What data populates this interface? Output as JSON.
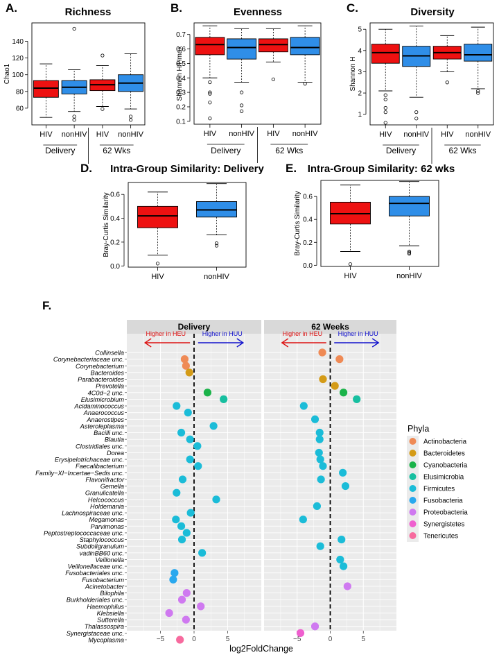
{
  "colors": {
    "hiv": "#ee1111",
    "nonhiv": "#2f8ee8",
    "panel_bg": "#ebebeb",
    "strip_bg": "#d9d9d9",
    "grid": "#ffffff",
    "arrow_heu": "#dd1111",
    "arrow_huu": "#1111cc"
  },
  "chart_data": [
    {
      "type": "box",
      "panel_label": "A.",
      "title": "Richness",
      "ylabel": "Chao1",
      "ylim": [
        40,
        162
      ],
      "yticks": [
        60,
        80,
        100,
        120,
        140
      ],
      "categories": [
        "HIV",
        "nonHIV",
        "HIV",
        "nonHIV"
      ],
      "groups": [
        "Delivery",
        "62 Wks"
      ],
      "boxes": [
        {
          "label": "HIV",
          "color": "hiv",
          "q1": 73,
          "median": 84,
          "q3": 93,
          "wlow": 49,
          "whigh": 113,
          "outliers": []
        },
        {
          "label": "nonHIV",
          "color": "nonhiv",
          "q1": 77,
          "median": 85,
          "q3": 93,
          "wlow": 56,
          "whigh": 106,
          "outliers": [
            155,
            50,
            46
          ]
        },
        {
          "label": "HIV",
          "color": "hiv",
          "q1": 81,
          "median": 88,
          "q3": 94,
          "wlow": 62,
          "whigh": 111,
          "outliers": [
            123,
            59
          ]
        },
        {
          "label": "nonHIV",
          "color": "nonhiv",
          "q1": 80,
          "median": 90,
          "q3": 100,
          "wlow": 59,
          "whigh": 125,
          "outliers": [
            50,
            46
          ]
        }
      ]
    },
    {
      "type": "box",
      "panel_label": "B.",
      "title": "Evenness",
      "ylabel": "Shannon H/Hmax",
      "ylim": [
        0.08,
        0.78
      ],
      "yticks": [
        0.1,
        0.2,
        0.3,
        0.4,
        0.5,
        0.6,
        0.7
      ],
      "categories": [
        "HIV",
        "nonHIV",
        "HIV",
        "nonHIV"
      ],
      "groups": [
        "Delivery",
        "62 Wks"
      ],
      "boxes": [
        {
          "label": "HIV",
          "color": "hiv",
          "q1": 0.56,
          "median": 0.63,
          "q3": 0.68,
          "wlow": 0.4,
          "whigh": 0.76,
          "outliers": [
            0.37,
            0.3,
            0.29,
            0.23,
            0.12
          ]
        },
        {
          "label": "nonHIV",
          "color": "nonhiv",
          "q1": 0.53,
          "median": 0.61,
          "q3": 0.67,
          "wlow": 0.37,
          "whigh": 0.74,
          "outliers": [
            0.3,
            0.21,
            0.17
          ]
        },
        {
          "label": "HIV",
          "color": "hiv",
          "q1": 0.58,
          "median": 0.63,
          "q3": 0.67,
          "wlow": 0.51,
          "whigh": 0.74,
          "outliers": [
            0.39
          ]
        },
        {
          "label": "nonHIV",
          "color": "nonhiv",
          "q1": 0.56,
          "median": 0.61,
          "q3": 0.68,
          "wlow": 0.37,
          "whigh": 0.76,
          "outliers": [
            0.36
          ]
        }
      ]
    },
    {
      "type": "box",
      "panel_label": "C.",
      "title": "Diversity",
      "ylabel": "Shannon H",
      "ylim": [
        0.5,
        5.3
      ],
      "yticks": [
        1,
        2,
        3,
        4,
        5
      ],
      "categories": [
        "HIV",
        "nonHIV",
        "HIV",
        "nonHIV"
      ],
      "groups": [
        "Delivery",
        "62 Wks"
      ],
      "boxes": [
        {
          "label": "HIV",
          "color": "hiv",
          "q1": 3.4,
          "median": 3.9,
          "q3": 4.3,
          "wlow": 2.1,
          "whigh": 5.0,
          "outliers": [
            1.9,
            1.7,
            1.3,
            1.1,
            0.6
          ]
        },
        {
          "label": "nonHIV",
          "color": "nonhiv",
          "q1": 3.25,
          "median": 3.75,
          "q3": 4.2,
          "wlow": 1.8,
          "whigh": 5.15,
          "outliers": [
            1.1,
            0.8
          ]
        },
        {
          "label": "HIV",
          "color": "hiv",
          "q1": 3.6,
          "median": 3.9,
          "q3": 4.2,
          "wlow": 3.0,
          "whigh": 4.7,
          "outliers": [
            2.5
          ]
        },
        {
          "label": "nonHIV",
          "color": "nonhiv",
          "q1": 3.5,
          "median": 3.8,
          "q3": 4.3,
          "wlow": 2.2,
          "whigh": 5.1,
          "outliers": [
            2.1,
            2.0
          ]
        }
      ]
    },
    {
      "type": "box",
      "panel_label": "D.",
      "title": "Intra-Group Similarity: Delivery",
      "ylabel": "Bray-Curtis Similarity",
      "ylim": [
        -0.01,
        0.7
      ],
      "yticks": [
        0.0,
        0.2,
        0.4,
        0.6
      ],
      "categories": [
        "HIV",
        "nonHIV"
      ],
      "boxes": [
        {
          "label": "HIV",
          "color": "hiv",
          "q1": 0.32,
          "median": 0.42,
          "q3": 0.5,
          "wlow": 0.09,
          "whigh": 0.62,
          "outliers": [
            0.02
          ]
        },
        {
          "label": "nonHIV",
          "color": "nonhiv",
          "q1": 0.41,
          "median": 0.47,
          "q3": 0.54,
          "wlow": 0.26,
          "whigh": 0.69,
          "outliers": [
            0.19,
            0.17
          ]
        }
      ]
    },
    {
      "type": "box",
      "panel_label": "E.",
      "title": "Intra-Group Similarity: 62 wks",
      "ylabel": "Bray-Curtis Similarity",
      "ylim": [
        -0.01,
        0.74
      ],
      "yticks": [
        0.0,
        0.2,
        0.4,
        0.6
      ],
      "categories": [
        "HIV",
        "nonHIV"
      ],
      "boxes": [
        {
          "label": "HIV",
          "color": "hiv",
          "q1": 0.36,
          "median": 0.45,
          "q3": 0.55,
          "wlow": 0.12,
          "whigh": 0.7,
          "outliers": [
            0.01
          ]
        },
        {
          "label": "nonHIV",
          "color": "nonhiv",
          "q1": 0.43,
          "median": 0.54,
          "q3": 0.6,
          "wlow": 0.17,
          "whigh": 0.73,
          "outliers": [
            0.12,
            0.11,
            0.1
          ]
        }
      ]
    },
    {
      "type": "scatter",
      "panel_label": "F.",
      "xlabel": "log2FoldChange",
      "xlim": [
        -10,
        10
      ],
      "xticks": [
        -5,
        0,
        5
      ],
      "facets": [
        "Delivery",
        "62 Weeks"
      ],
      "arrow_left_label": "Higher in HEU",
      "arrow_right_label": "Higher in HUU",
      "legend_title": "Phyla",
      "phyla": [
        {
          "name": "Actinobacteria",
          "color": "#ef8a55"
        },
        {
          "name": "Bacteroidetes",
          "color": "#d49b17"
        },
        {
          "name": "Cyanobacteria",
          "color": "#1bb34a"
        },
        {
          "name": "Elusimicrobia",
          "color": "#17bfa0"
        },
        {
          "name": "Firmicutes",
          "color": "#1bbcd8"
        },
        {
          "name": "Fusobacteria",
          "color": "#2aa8ee"
        },
        {
          "name": "Proteobacteria",
          "color": "#cf79f0"
        },
        {
          "name": "Synergistetes",
          "color": "#ef5fcf"
        },
        {
          "name": "Tenericutes",
          "color": "#f76a9e"
        }
      ],
      "taxa": [
        {
          "name": "Collinsella",
          "phylum": 0,
          "delivery": null,
          "wk62": -1.2
        },
        {
          "name": "Corynebacteriaceae unc.",
          "phylum": 0,
          "delivery": -1.4,
          "wk62": 1.4
        },
        {
          "name": "Corynebacterium",
          "phylum": 0,
          "delivery": -1.2,
          "wk62": null
        },
        {
          "name": "Bacteroides",
          "phylum": 1,
          "delivery": -0.7,
          "wk62": null
        },
        {
          "name": "Parabacteroides",
          "phylum": 1,
          "delivery": null,
          "wk62": -1.1
        },
        {
          "name": "Prevotella",
          "phylum": 1,
          "delivery": null,
          "wk62": 0.7
        },
        {
          "name": "4C0d−2 unc.",
          "phylum": 2,
          "delivery": 2.0,
          "wk62": 2.0
        },
        {
          "name": "Elusimicrobium",
          "phylum": 3,
          "delivery": 4.4,
          "wk62": 4.0
        },
        {
          "name": "Acidaminococcus",
          "phylum": 4,
          "delivery": -2.6,
          "wk62": -4.0
        },
        {
          "name": "Anaerococcus",
          "phylum": 4,
          "delivery": -0.9,
          "wk62": null
        },
        {
          "name": "Anaerostipes",
          "phylum": 4,
          "delivery": null,
          "wk62": -2.3
        },
        {
          "name": "Asteroleplasma",
          "phylum": 4,
          "delivery": 2.9,
          "wk62": null
        },
        {
          "name": "Bacilli unc.",
          "phylum": 4,
          "delivery": -1.9,
          "wk62": -1.6
        },
        {
          "name": "Blautia",
          "phylum": 4,
          "delivery": -0.6,
          "wk62": -1.6
        },
        {
          "name": "Clostridiales unc.",
          "phylum": 4,
          "delivery": 0.5,
          "wk62": null
        },
        {
          "name": "Dorea",
          "phylum": 4,
          "delivery": null,
          "wk62": -1.7
        },
        {
          "name": "Erysipelotrichaceae unc.",
          "phylum": 4,
          "delivery": -0.6,
          "wk62": -1.5
        },
        {
          "name": "Faecalibacterium",
          "phylum": 4,
          "delivery": 0.6,
          "wk62": -1.1
        },
        {
          "name": "Family−XI−Incertae−Sedis unc.",
          "phylum": 4,
          "delivery": null,
          "wk62": 1.9
        },
        {
          "name": "Flavonifractor",
          "phylum": 4,
          "delivery": -1.7,
          "wk62": -1.4
        },
        {
          "name": "Gemella",
          "phylum": 4,
          "delivery": null,
          "wk62": 2.3
        },
        {
          "name": "Granulicatella",
          "phylum": 4,
          "delivery": -2.6,
          "wk62": null
        },
        {
          "name": "Helcococcus",
          "phylum": 4,
          "delivery": 3.3,
          "wk62": null
        },
        {
          "name": "Holdemania",
          "phylum": 4,
          "delivery": null,
          "wk62": -2.0
        },
        {
          "name": "Lachnospiraceae unc.",
          "phylum": 4,
          "delivery": -0.5,
          "wk62": null
        },
        {
          "name": "Megamonas",
          "phylum": 4,
          "delivery": -2.7,
          "wk62": -4.1
        },
        {
          "name": "Parvimonas",
          "phylum": 4,
          "delivery": -1.9,
          "wk62": null
        },
        {
          "name": "Peptostreptococcaceae unc.",
          "phylum": 4,
          "delivery": -1.1,
          "wk62": null
        },
        {
          "name": "Staphylococcus",
          "phylum": 4,
          "delivery": -1.8,
          "wk62": 1.7
        },
        {
          "name": "Subdoligranulum",
          "phylum": 4,
          "delivery": null,
          "wk62": -1.5
        },
        {
          "name": "vadinBB60 unc.",
          "phylum": 4,
          "delivery": 1.2,
          "wk62": null
        },
        {
          "name": "Veillonella",
          "phylum": 4,
          "delivery": null,
          "wk62": 1.5
        },
        {
          "name": "Veillonellaceae unc.",
          "phylum": 4,
          "delivery": null,
          "wk62": 2.0
        },
        {
          "name": "Fusobacteriales unc.",
          "phylum": 5,
          "delivery": -2.9,
          "wk62": null
        },
        {
          "name": "Fusobacterium",
          "phylum": 5,
          "delivery": -3.1,
          "wk62": null
        },
        {
          "name": "Acinetobacter",
          "phylum": 6,
          "delivery": null,
          "wk62": 2.6
        },
        {
          "name": "Bilophila",
          "phylum": 6,
          "delivery": -1.1,
          "wk62": null
        },
        {
          "name": "Burkholderiales unc.",
          "phylum": 6,
          "delivery": -1.8,
          "wk62": null
        },
        {
          "name": "Haemophilus",
          "phylum": 6,
          "delivery": 1.0,
          "wk62": null
        },
        {
          "name": "Klebsiella",
          "phylum": 6,
          "delivery": -3.7,
          "wk62": null
        },
        {
          "name": "Sutterella",
          "phylum": 6,
          "delivery": -1.2,
          "wk62": null
        },
        {
          "name": "Thalassospira",
          "phylum": 6,
          "delivery": null,
          "wk62": -2.3
        },
        {
          "name": "Synergistaceae unc.",
          "phylum": 7,
          "delivery": null,
          "wk62": -4.5
        },
        {
          "name": "Mycoplasma",
          "phylum": 8,
          "delivery": -2.1,
          "wk62": null
        }
      ]
    }
  ]
}
